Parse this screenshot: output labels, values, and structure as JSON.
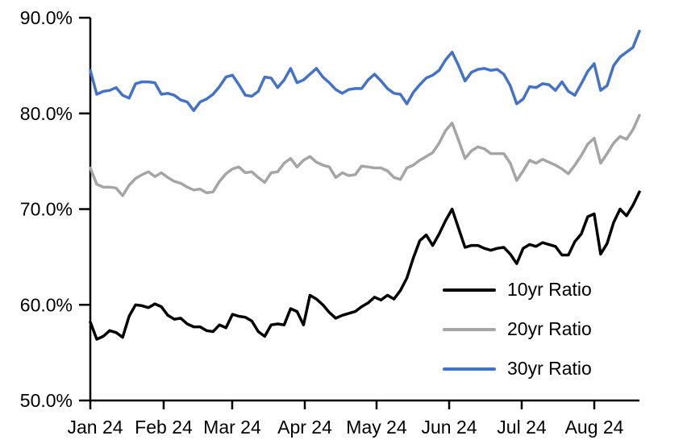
{
  "chart_data": {
    "type": "line",
    "title": "",
    "xlabel": "",
    "ylabel": "",
    "grid": false,
    "legend_position": "middle-right",
    "ylim": [
      50,
      90
    ],
    "y_tick_labels": [
      "90.0%",
      "80.0%",
      "70.0%",
      "60.0%",
      "50.0%"
    ],
    "y_tick_values": [
      90,
      80,
      70,
      60,
      50
    ],
    "x_tick_labels": [
      "Jan 24",
      "Feb 24",
      "Mar 24",
      "Apr 24",
      "May 24",
      "Jun 24",
      "Jul 24",
      "Aug 24"
    ],
    "x_range_note": "daily values from Jan 2024 through late Aug 2024, values in percent",
    "series": [
      {
        "name": "10yr Ratio",
        "color": "#000000",
        "values": [
          58.2,
          56.4,
          56.7,
          57.3,
          57.1,
          56.6,
          58.8,
          60.0,
          59.9,
          59.7,
          60.1,
          59.8,
          58.9,
          58.5,
          58.6,
          58.0,
          57.7,
          57.7,
          57.3,
          57.2,
          57.9,
          57.6,
          59.0,
          58.8,
          58.7,
          58.3,
          57.2,
          56.7,
          57.9,
          58.0,
          57.9,
          59.6,
          59.3,
          57.9,
          61.0,
          60.6,
          60.0,
          59.2,
          58.6,
          58.9,
          59.1,
          59.3,
          59.8,
          60.2,
          60.8,
          60.5,
          61.0,
          60.6,
          61.5,
          62.8,
          64.9,
          66.7,
          67.3,
          66.2,
          67.4,
          68.8,
          70.0,
          68.0,
          66.0,
          66.2,
          66.2,
          65.9,
          65.7,
          65.9,
          66.0,
          65.3,
          64.3,
          65.9,
          66.3,
          66.1,
          66.5,
          66.3,
          66.1,
          65.2,
          65.2,
          66.6,
          67.4,
          69.2,
          69.5,
          65.3,
          66.4,
          68.6,
          70.0,
          69.3,
          70.4,
          71.8
        ]
      },
      {
        "name": "20yr Ratio",
        "color": "#A5A5A5",
        "values": [
          74.3,
          72.6,
          72.3,
          72.3,
          72.2,
          71.4,
          72.5,
          73.2,
          73.6,
          73.9,
          73.4,
          73.8,
          73.3,
          72.9,
          72.7,
          72.3,
          72.0,
          72.1,
          71.7,
          71.8,
          72.9,
          73.7,
          74.2,
          74.4,
          73.8,
          73.9,
          73.3,
          72.8,
          73.8,
          73.9,
          74.8,
          75.3,
          74.4,
          75.1,
          75.5,
          74.9,
          74.6,
          74.4,
          73.3,
          73.8,
          73.5,
          73.6,
          74.5,
          74.4,
          74.3,
          74.3,
          74.0,
          73.3,
          73.1,
          74.3,
          74.6,
          75.1,
          75.5,
          75.9,
          76.9,
          78.2,
          79.0,
          77.2,
          75.3,
          76.1,
          76.5,
          76.3,
          75.8,
          75.8,
          75.8,
          74.8,
          73.0,
          74.0,
          75.1,
          74.8,
          75.2,
          74.9,
          74.6,
          74.2,
          73.7,
          74.6,
          75.6,
          76.8,
          77.4,
          74.8,
          75.8,
          76.9,
          77.6,
          77.3,
          78.3,
          79.8
        ]
      },
      {
        "name": "30yr Ratio",
        "color": "#4472C4",
        "values": [
          84.5,
          82.0,
          82.3,
          82.4,
          82.7,
          81.9,
          81.6,
          83.1,
          83.3,
          83.3,
          83.2,
          82.0,
          82.1,
          81.9,
          81.4,
          81.2,
          80.3,
          81.2,
          81.5,
          82.0,
          82.8,
          83.8,
          84.0,
          83.0,
          81.9,
          81.8,
          82.3,
          83.8,
          83.7,
          82.7,
          83.5,
          84.7,
          83.2,
          83.5,
          84.1,
          84.7,
          83.8,
          83.2,
          82.5,
          82.1,
          82.5,
          82.6,
          82.6,
          83.5,
          84.1,
          83.4,
          82.6,
          82.1,
          82.0,
          81.0,
          82.2,
          83.0,
          83.7,
          84.0,
          84.5,
          85.6,
          86.4,
          85.0,
          83.4,
          84.3,
          84.6,
          84.7,
          84.5,
          84.6,
          84.1,
          82.9,
          81.0,
          81.5,
          82.8,
          82.7,
          83.1,
          83.0,
          82.4,
          83.3,
          82.3,
          81.9,
          83.1,
          84.4,
          85.2,
          82.4,
          82.9,
          85.0,
          85.9,
          86.4,
          86.9,
          88.6
        ]
      }
    ]
  }
}
